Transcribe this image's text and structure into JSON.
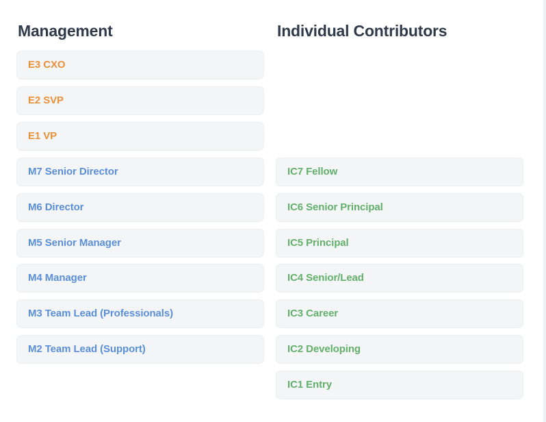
{
  "colors": {
    "executive": "#e8913a",
    "management": "#5a8fd8",
    "individual_contributor": "#62b06b",
    "card_background": "#f4f5f7",
    "heading": "#2f3a4a"
  },
  "management": {
    "title": "Management",
    "levels": [
      {
        "label": "E3 CXO",
        "track": "executive"
      },
      {
        "label": "E2 SVP",
        "track": "executive"
      },
      {
        "label": "E1 VP",
        "track": "executive"
      },
      {
        "label": "M7 Senior Director",
        "track": "management"
      },
      {
        "label": "M6 Director",
        "track": "management"
      },
      {
        "label": "M5 Senior Manager",
        "track": "management"
      },
      {
        "label": "M4 Manager",
        "track": "management"
      },
      {
        "label": "M3 Team Lead (Professionals)",
        "track": "management"
      },
      {
        "label": "M2 Team Lead (Support)",
        "track": "management"
      }
    ]
  },
  "individual_contributors": {
    "title": "Individual Contributors",
    "levels": [
      {
        "label": "IC7 Fellow",
        "track": "individual_contributor"
      },
      {
        "label": "IC6 Senior Principal",
        "track": "individual_contributor"
      },
      {
        "label": "IC5 Principal",
        "track": "individual_contributor"
      },
      {
        "label": "IC4 Senior/Lead",
        "track": "individual_contributor"
      },
      {
        "label": "IC3 Career",
        "track": "individual_contributor"
      },
      {
        "label": "IC2 Developing",
        "track": "individual_contributor"
      },
      {
        "label": "IC1 Entry",
        "track": "individual_contributor"
      }
    ]
  }
}
